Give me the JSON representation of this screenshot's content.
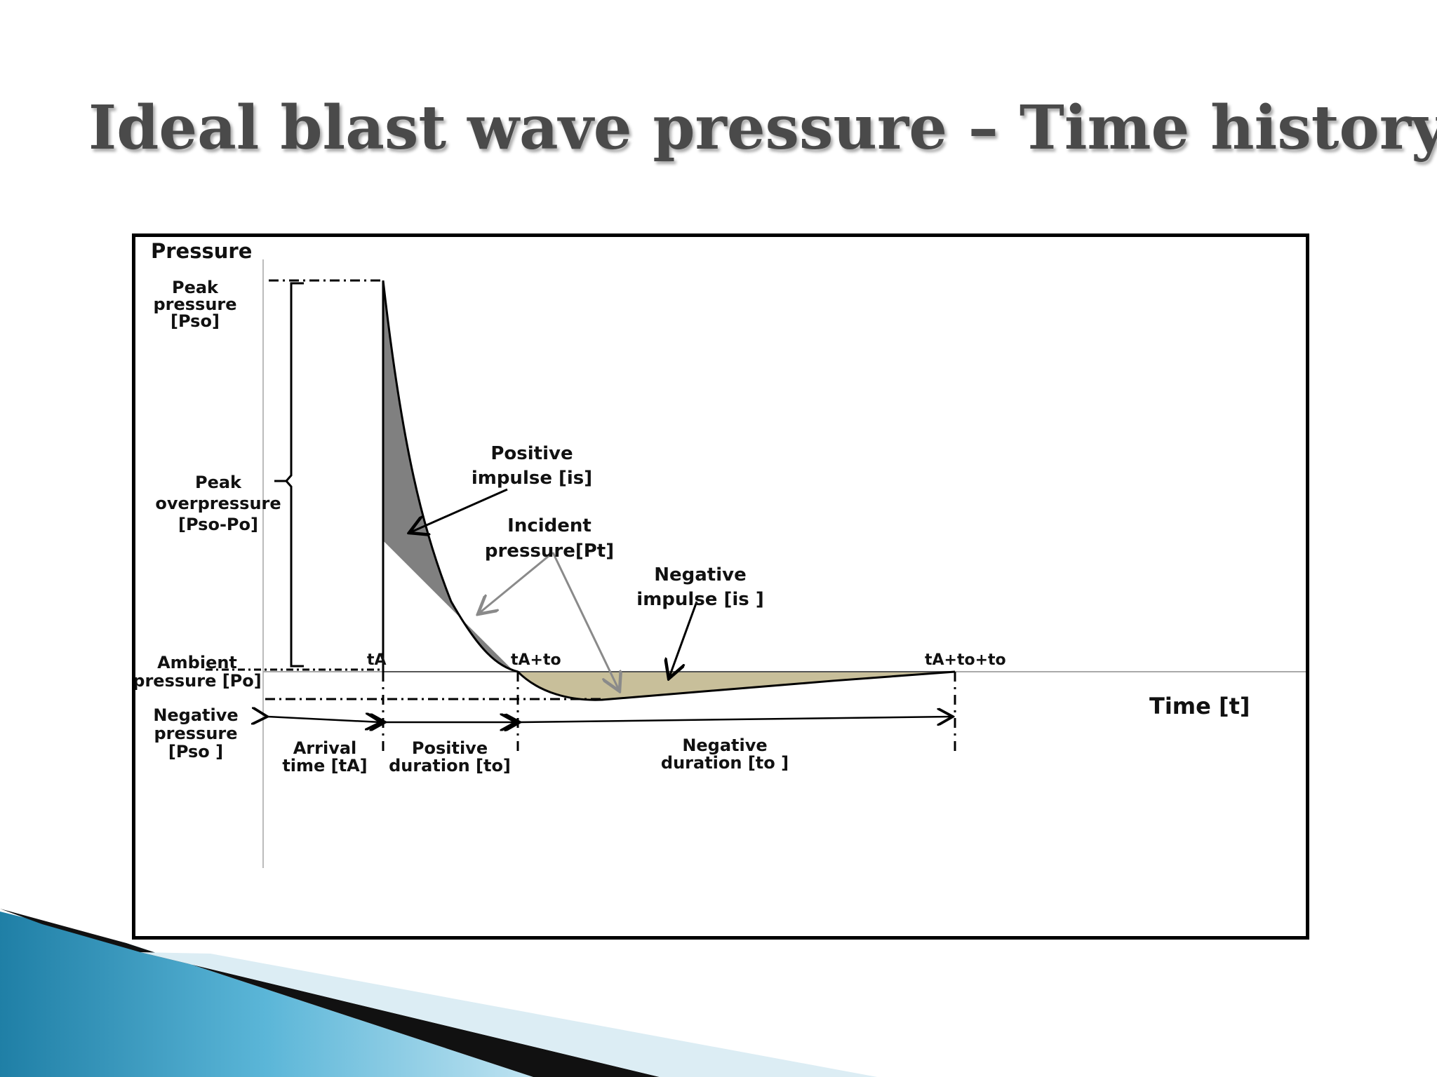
{
  "slide": {
    "title": "Ideal blast wave pressure – Time history"
  },
  "diagram": {
    "y_axis_label": "Pressure",
    "x_axis_label": "Time [t]",
    "labels": {
      "peak_pressure": [
        "Peak",
        "pressure",
        "[Pso]"
      ],
      "peak_overpressure": [
        "Peak",
        "overpressure",
        "[Pso-Po]"
      ],
      "ambient_pressure": [
        "Ambient",
        "pressure [Po]"
      ],
      "negative_pressure": [
        "Negative",
        "pressure",
        "[Pso ]"
      ],
      "positive_impulse": [
        "Positive",
        "impulse [is]"
      ],
      "incident_pressure": [
        "Incident",
        "pressure[Pt]"
      ],
      "negative_impulse": [
        "Negative",
        "impulse [is ]"
      ],
      "t_a": "tA",
      "t_a_to": "tA+to",
      "t_a_to_to": "tA+to+to",
      "arrival_time": [
        "Arrival",
        "time [tA]"
      ],
      "positive_duration": [
        "Positive",
        "duration [to]"
      ],
      "negative_duration": [
        "Negative",
        "duration [to ]"
      ]
    },
    "colors": {
      "positive_phase_fill": "#808080",
      "negative_phase_fill": "#c8bf9a",
      "incident_arrow": "#8a8a8a"
    }
  }
}
